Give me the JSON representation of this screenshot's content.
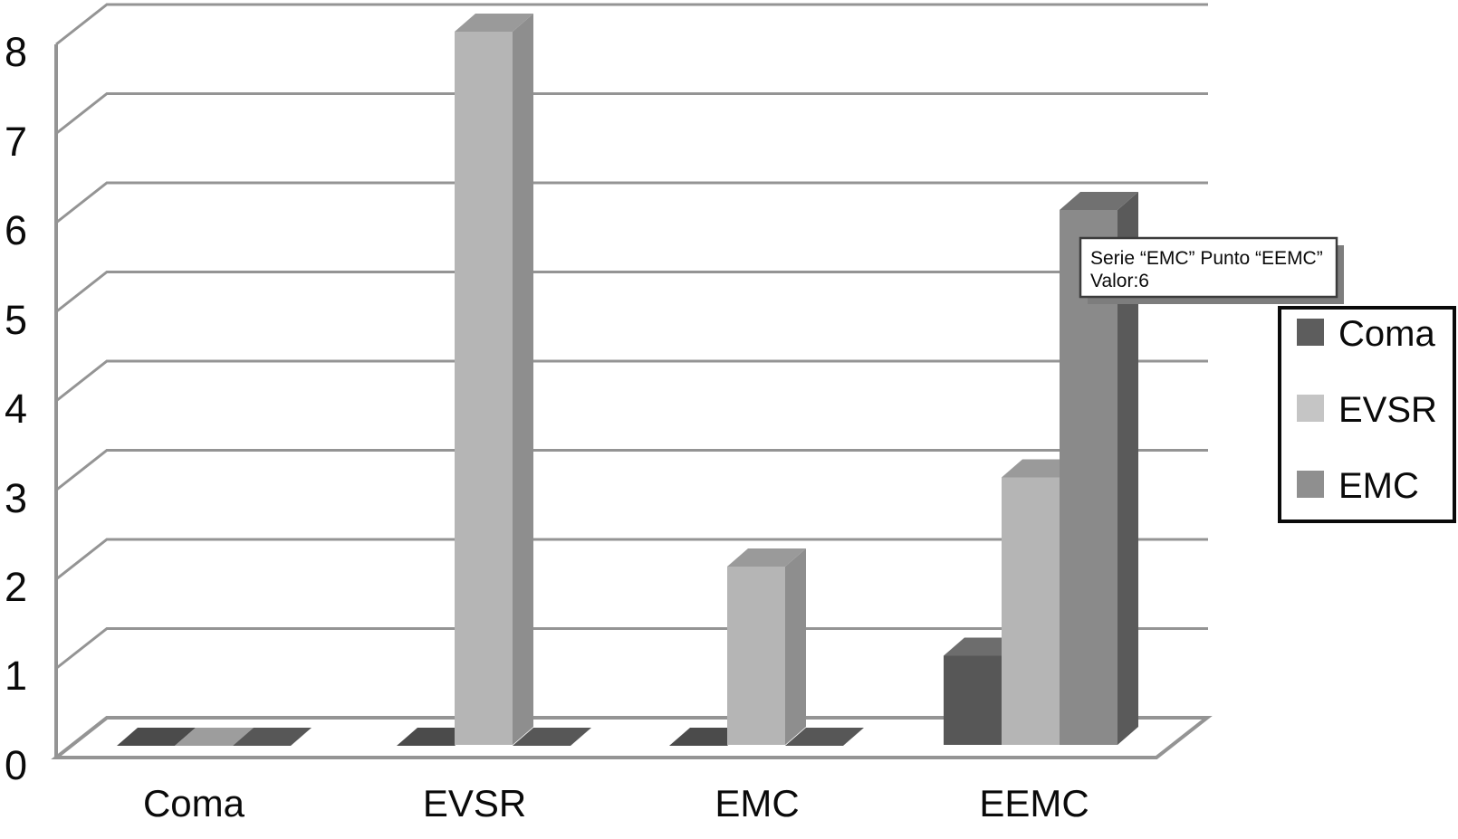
{
  "chart_data": {
    "type": "bar",
    "projection": "3d-column",
    "title": "",
    "categories": [
      "Coma",
      "EVSR",
      "EMC",
      "EEMC"
    ],
    "series": [
      {
        "name": "Coma",
        "values": [
          0,
          0,
          0,
          1
        ]
      },
      {
        "name": "EVSR",
        "values": [
          0,
          8,
          2,
          3
        ]
      },
      {
        "name": "EMC",
        "values": [
          0,
          0,
          0,
          6
        ]
      }
    ],
    "ylim": [
      0,
      8
    ],
    "yticks": [
      "0",
      "1",
      "2",
      "3",
      "4",
      "5",
      "6",
      "7",
      "8"
    ],
    "grid": true,
    "legend_position": "right",
    "axis_color": "#949494",
    "colors": {
      "Coma": {
        "front": "#575757",
        "side": "#424242",
        "top": "#6d6d6d",
        "flat": "#4b4b4b",
        "legend": "#5d5d5d"
      },
      "EVSR": {
        "front": "#b5b5b5",
        "side": "#8e8e8e",
        "top": "#9a9a9a",
        "flat": "#9d9d9d",
        "legend": "#c5c5c5"
      },
      "EMC": {
        "front": "#8a8a8a",
        "side": "#5a5a5a",
        "top": "#717171",
        "flat": "#575757",
        "legend": "#8f8f8f"
      }
    }
  },
  "legend": {
    "items": [
      "Coma",
      "EVSR",
      "EMC"
    ]
  },
  "tooltip": {
    "line1": "Serie “EMC” Punto “EEMC”",
    "line2": "Valor:6"
  }
}
